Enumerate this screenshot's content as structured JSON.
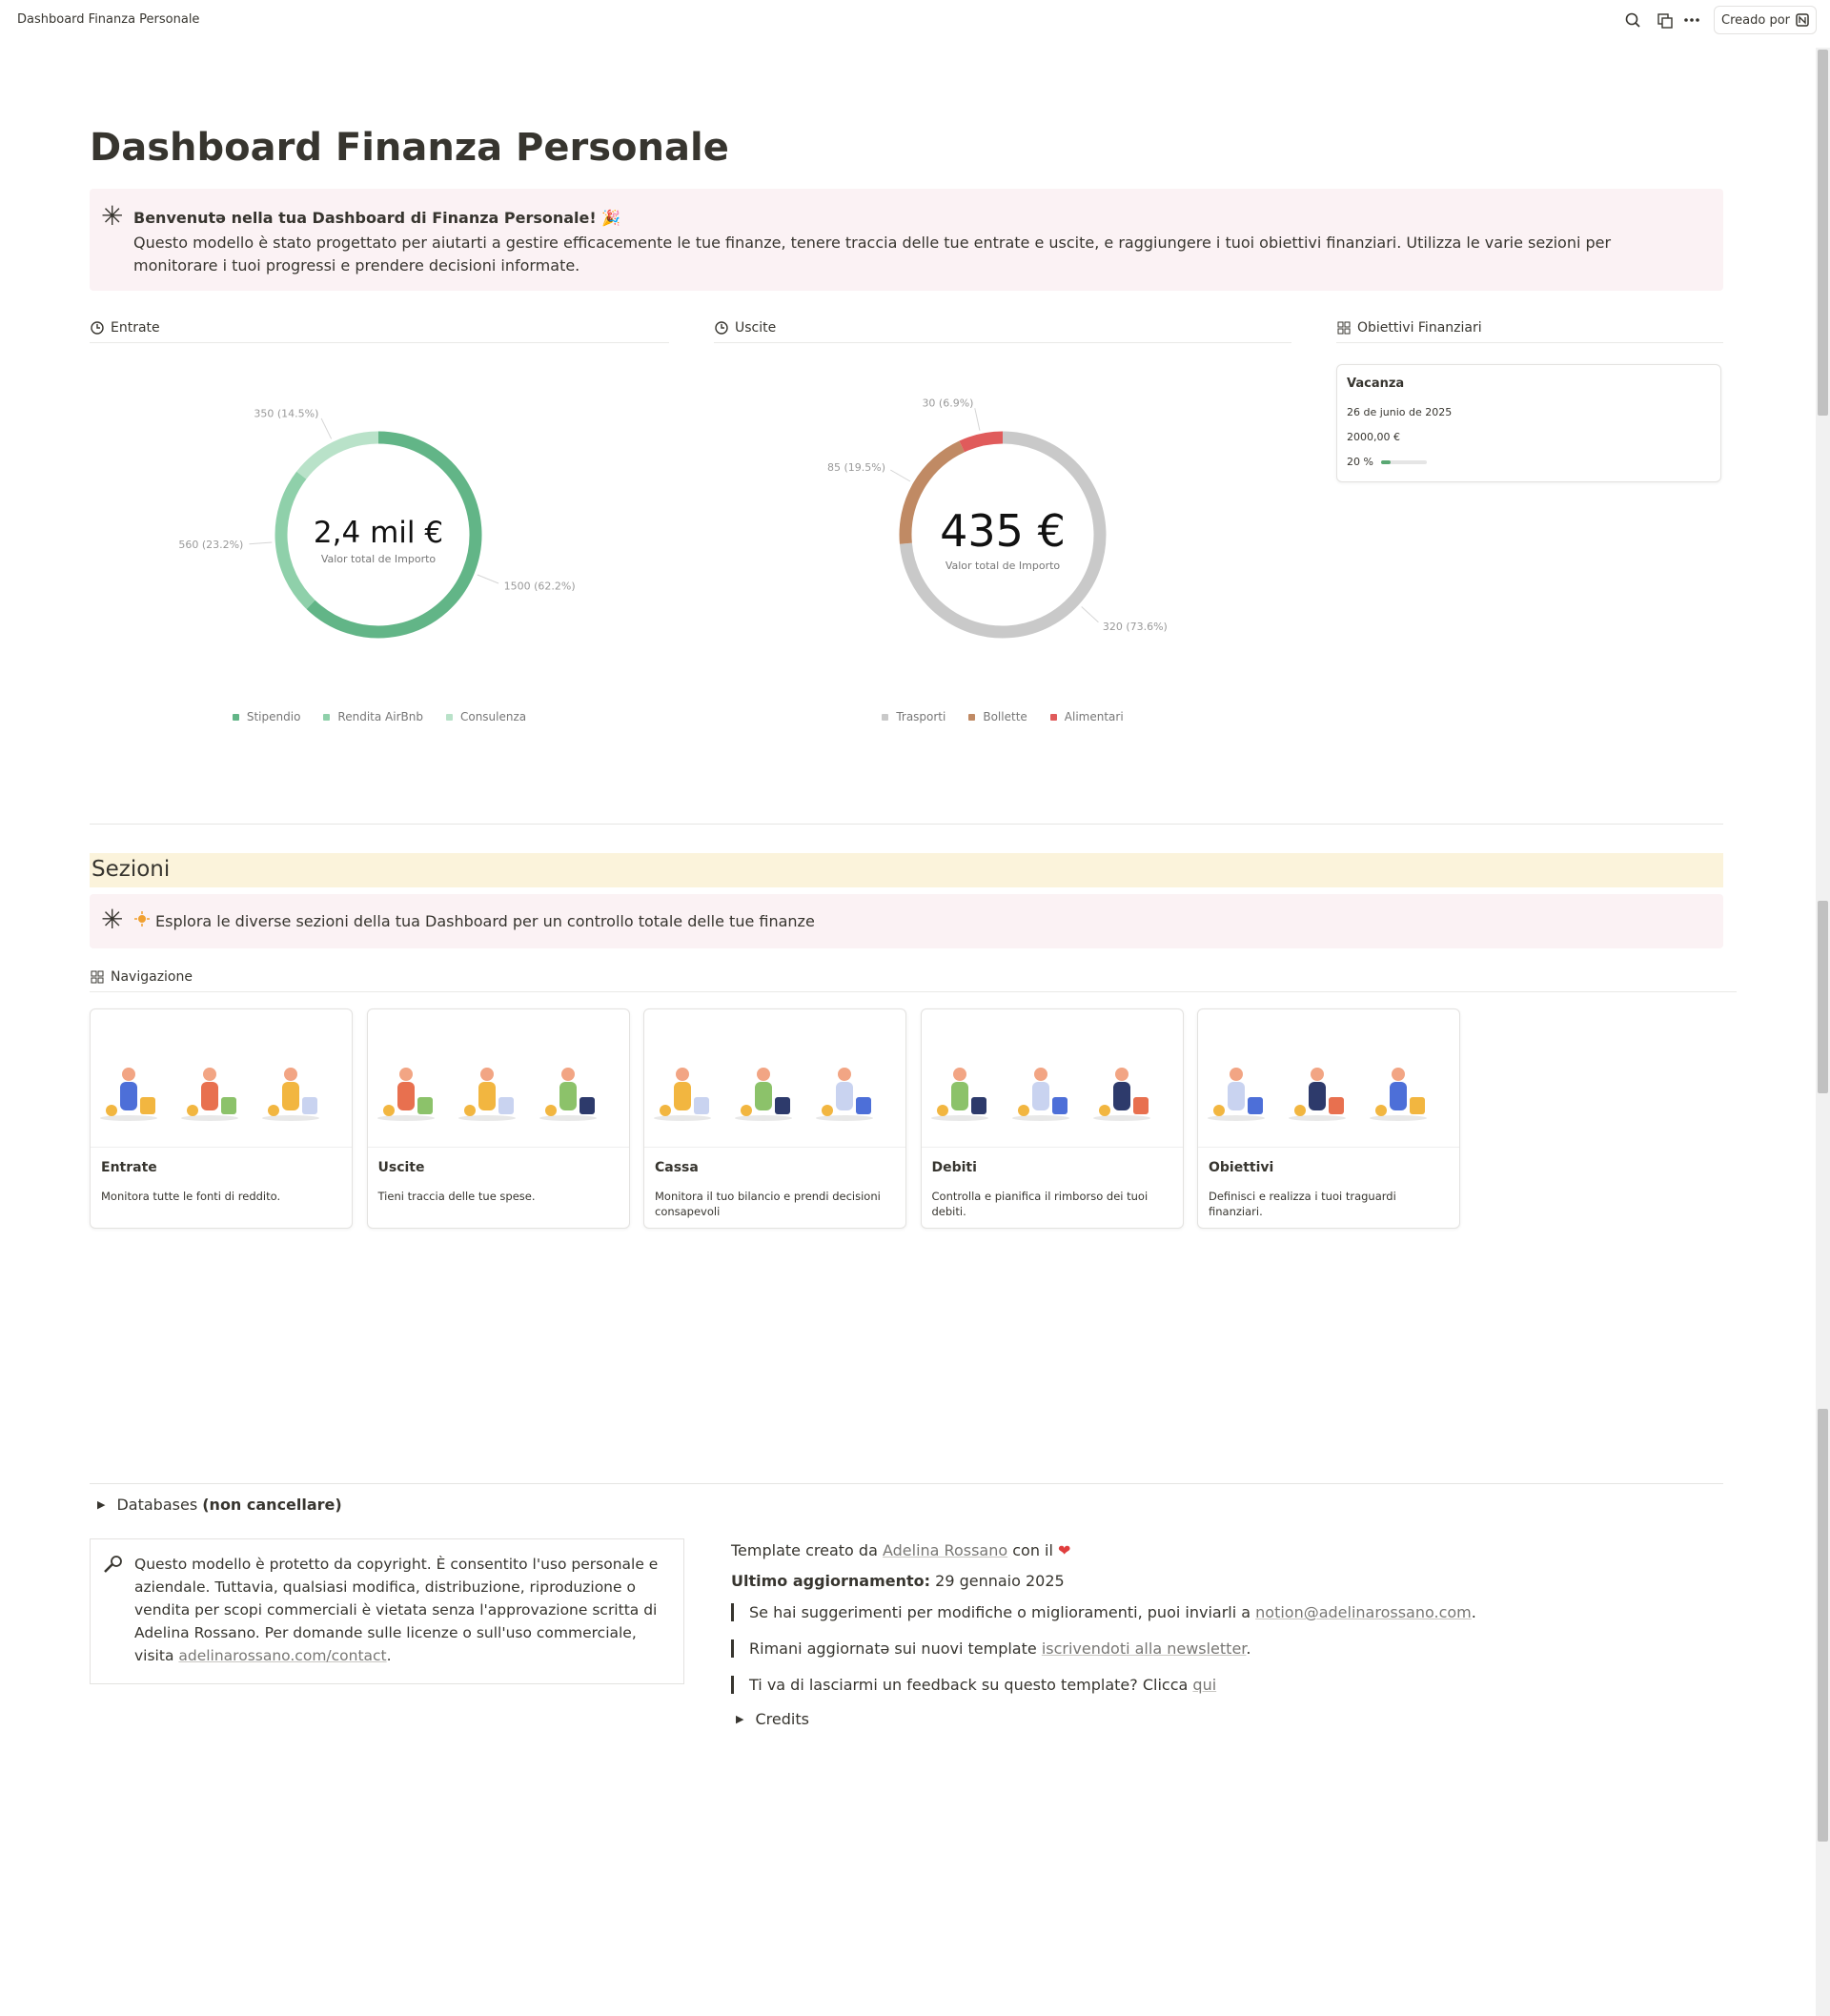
{
  "topbar": {
    "title": "Dashboard Finanza Personale",
    "button": "Creado por"
  },
  "title": "Dashboard Finanza Personale",
  "callout": {
    "heading": "Benvenutə nella tua Dashboard di Finanza Personale! 🎉",
    "body": "Questo modello è stato progettato per aiutarti a gestire efficacemente le tue finanze, tenere traccia delle tue entrate e uscite, e raggiungere i tuoi obiettivi finanziari. Utilizza le varie sezioni per monitorare i tuoi progressi e prendere decisioni informate."
  },
  "chart_data": [
    {
      "type": "donut",
      "title": "Entrate",
      "categories": [
        "Stipendio",
        "Rendita AirBnb",
        "Consulenza"
      ],
      "values": [
        1500,
        560,
        350
      ],
      "value_labels": [
        "1500 (62.2%)",
        "560 (23.2%)",
        "350 (14.5%)"
      ],
      "colors": [
        "#62b587",
        "#8fd0aa",
        "#b9e2c9"
      ],
      "center_value": "2,4 mil €",
      "center_label": "Valor total de Importo"
    },
    {
      "type": "donut",
      "title": "Uscite",
      "categories": [
        "Trasporti",
        "Bollette",
        "Alimentari"
      ],
      "values": [
        320,
        85,
        30
      ],
      "value_labels": [
        "320 (73.6%)",
        "85 (19.5%)",
        "30 (6.9%)"
      ],
      "colors": [
        "#c9c9c9",
        "#c08a64",
        "#e05b5b"
      ],
      "center_value": "435 €",
      "center_label": "Valor total de Importo"
    }
  ],
  "goals": {
    "title": "Obiettivi Finanziari",
    "card": {
      "name": "Vacanza",
      "date": "26 de junio de 2025",
      "amount": "2000,00 €",
      "progress": 20,
      "progress_label": "20 %"
    }
  },
  "sezioni": {
    "heading": "Sezioni",
    "callout": "Esplora le diverse sezioni della tua Dashboard per un controllo totale delle tue finanze"
  },
  "navigation": {
    "title": "Navigazione",
    "cards": [
      {
        "title": "Entrate",
        "desc": "Monitora tutte le fonti di reddito."
      },
      {
        "title": "Uscite",
        "desc": "Tieni traccia delle tue spese."
      },
      {
        "title": "Cassa",
        "desc": "Monitora il tuo bilancio e prendi decisioni consapevoli"
      },
      {
        "title": "Debiti",
        "desc": "Controlla e pianifica il rimborso dei tuoi debiti."
      },
      {
        "title": "Obiettivi",
        "desc": "Definisci e realizza i tuoi traguardi finanziari."
      }
    ]
  },
  "footer": {
    "databases": [
      {
        "text": "Databases ",
        "style": "plain"
      },
      {
        "text": "(non cancellare)",
        "style": "bold"
      }
    ],
    "copyright": [
      {
        "text": "Questo modello è protetto da copyright. È consentito l'uso personale e aziendale. Tuttavia, qualsiasi modifica, distribuzione, riproduzione o vendita per scopi commerciali è vietata senza l'approvazione scritta di Adelina Rossano. Per domande sulle licenze o sull'uso commerciale, visita ",
        "style": "plain"
      },
      {
        "text": "adelinarossano.com/contact",
        "style": "link"
      },
      {
        "text": ".",
        "style": "plain"
      }
    ],
    "lines": [
      [
        {
          "text": "Template creato da ",
          "style": "plain"
        },
        {
          "text": "Adelina Rossano",
          "style": "link"
        },
        {
          "text": " con il ",
          "style": "plain"
        },
        {
          "text": "❤",
          "style": "heart"
        }
      ],
      [
        {
          "text": "Ultimo aggiornamento:",
          "style": "bold"
        },
        {
          "text": " 29 gennaio 2025",
          "style": "plain"
        }
      ]
    ],
    "quotes": [
      [
        {
          "text": "Se hai suggerimenti per modifiche o miglioramenti, puoi inviarli a ",
          "style": "plain"
        },
        {
          "text": "notion@adelinarossano.com",
          "style": "link"
        },
        {
          "text": ".",
          "style": "plain"
        }
      ],
      [
        {
          "text": "Rimani aggiornatə sui nuovi template ",
          "style": "plain"
        },
        {
          "text": "iscrivendoti alla newsletter",
          "style": "link"
        },
        {
          "text": ".",
          "style": "plain"
        }
      ],
      [
        {
          "text": "Ti va di lasciarmi un feedback su questo template? Clicca ",
          "style": "plain"
        },
        {
          "text": "qui",
          "style": "link"
        }
      ]
    ],
    "credits": "Credits"
  }
}
